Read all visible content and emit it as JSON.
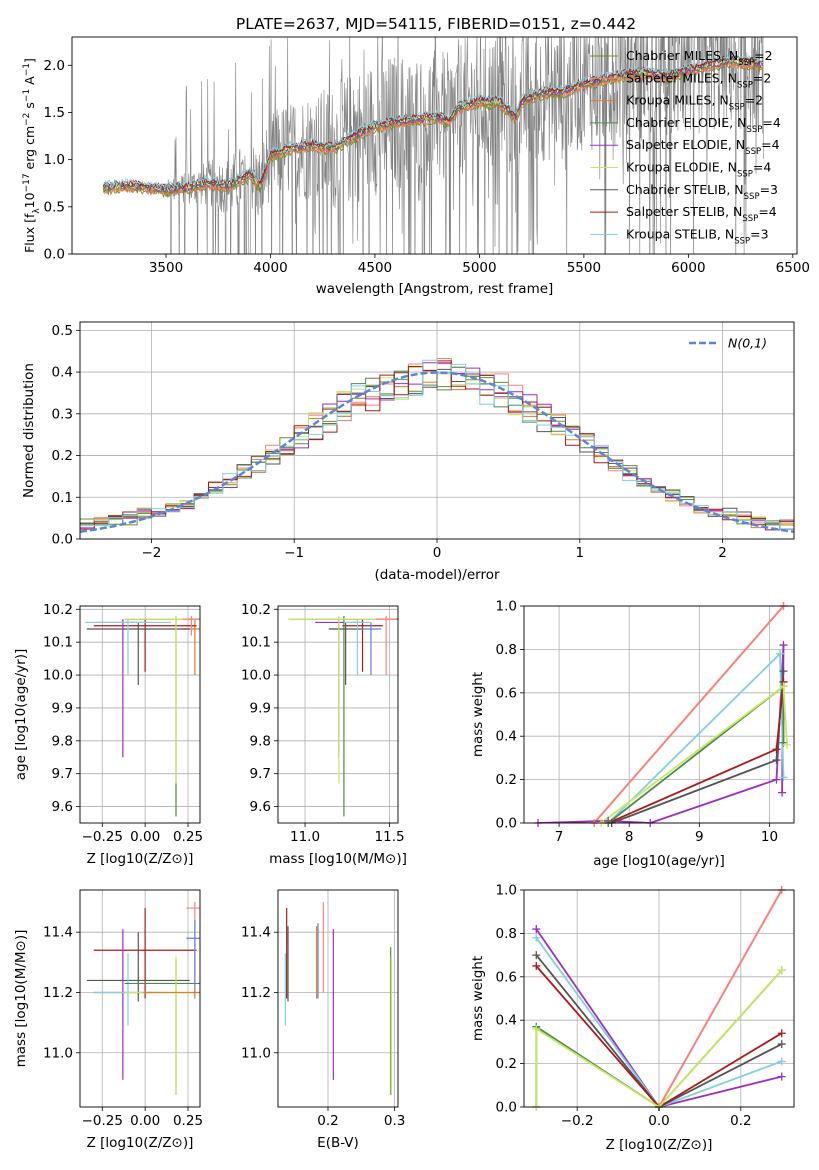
{
  "figure_title": "PLATE=2637, MJD=54115, FIBERID=0151, z=0.442",
  "chart_data": [
    {
      "id": "spectrum",
      "type": "line",
      "xlabel": "wavelength [Angstrom, rest frame]",
      "ylabel": "Flux [f_λ 10^-17 erg cm^-2 s^-1 A^-1]",
      "xlim": [
        3050,
        6520
      ],
      "ylim": [
        0,
        2.3
      ],
      "xticks": [
        3500,
        4000,
        4500,
        5000,
        5500,
        6000,
        6500
      ],
      "yticks": [
        0.0,
        0.5,
        1.0,
        1.5,
        2.0
      ],
      "legend_position": "top-right",
      "legend": [
        {
          "name": "Chabrier MILES, N_SSP=2",
          "base": "Chabrier MILES, N",
          "sub": "SSP",
          "tail": "=2",
          "color": "#6b8e23"
        },
        {
          "name": "Salpeter MILES, N_SSP=2",
          "base": "Salpeter MILES, N",
          "sub": "SSP",
          "tail": "=2",
          "color": "#ff7f7f"
        },
        {
          "name": "Kroupa MILES, N_SSP=2",
          "base": "Kroupa MILES, N",
          "sub": "SSP",
          "tail": "=2",
          "color": "#e07b30"
        },
        {
          "name": "Chabrier ELODIE, N_SSP=4",
          "base": "Chabrier ELODIE, N",
          "sub": "SSP",
          "tail": "=4",
          "color": "#4d8b4d"
        },
        {
          "name": "Salpeter ELODIE, N_SSP=4",
          "base": "Salpeter ELODIE, N",
          "sub": "SSP",
          "tail": "=4",
          "color": "#9b30c0"
        },
        {
          "name": "Kroupa ELODIE, N_SSP=4",
          "base": "Kroupa ELODIE, N",
          "sub": "SSP",
          "tail": "=4",
          "color": "#c8e860"
        },
        {
          "name": "Chabrier STELIB, N_SSP=3",
          "base": "Chabrier STELIB, N",
          "sub": "SSP",
          "tail": "=3",
          "color": "#555555"
        },
        {
          "name": "Salpeter STELIB, N_SSP=4",
          "base": "Salpeter STELIB, N",
          "sub": "SSP",
          "tail": "=4",
          "color": "#aa1a1a"
        },
        {
          "name": "Kroupa STELIB, N_SSP=3",
          "base": "Kroupa STELIB, N",
          "sub": "SSP",
          "tail": "=3",
          "color": "#80d0e0"
        }
      ],
      "data_color": "#808080",
      "continuum": [
        [
          3200,
          0.7
        ],
        [
          3300,
          0.72
        ],
        [
          3400,
          0.71
        ],
        [
          3500,
          0.68
        ],
        [
          3600,
          0.7
        ],
        [
          3700,
          0.75
        ],
        [
          3800,
          0.72
        ],
        [
          3900,
          0.85
        ],
        [
          3950,
          0.72
        ],
        [
          4000,
          1.05
        ],
        [
          4100,
          1.12
        ],
        [
          4200,
          1.15
        ],
        [
          4300,
          1.12
        ],
        [
          4400,
          1.25
        ],
        [
          4500,
          1.35
        ],
        [
          4600,
          1.4
        ],
        [
          4700,
          1.42
        ],
        [
          4800,
          1.45
        ],
        [
          4850,
          1.4
        ],
        [
          4900,
          1.55
        ],
        [
          5000,
          1.62
        ],
        [
          5100,
          1.6
        ],
        [
          5175,
          1.45
        ],
        [
          5200,
          1.62
        ],
        [
          5300,
          1.7
        ],
        [
          5400,
          1.72
        ],
        [
          5500,
          1.8
        ],
        [
          5600,
          1.85
        ],
        [
          5700,
          1.9
        ],
        [
          5800,
          1.92
        ],
        [
          5900,
          1.88
        ],
        [
          6000,
          1.95
        ],
        [
          6100,
          2.0
        ],
        [
          6200,
          2.05
        ],
        [
          6300,
          2.02
        ],
        [
          6360,
          2.0
        ]
      ],
      "noise_start": 3500
    },
    {
      "id": "residuals",
      "type": "histogram",
      "xlabel": "(data-model)/error",
      "ylabel": "Normed distribution",
      "xlim": [
        -2.5,
        2.5
      ],
      "ylim": [
        0,
        0.52
      ],
      "xticks": [
        -2,
        -1,
        0,
        1,
        2
      ],
      "yticks": [
        0.0,
        0.1,
        0.2,
        0.3,
        0.4,
        0.5
      ],
      "legend_label": "N(0,1)",
      "legend_color": "#5b85d6",
      "bin_width": 0.1,
      "bin_start": -2.5
    },
    {
      "id": "age_vs_Z",
      "type": "errorbar",
      "xlabel": "Z [log10(Z/Z⊙)]",
      "ylabel": "age  [log10(age/yr)]",
      "xlim": [
        -0.38,
        0.32
      ],
      "ylim": [
        9.55,
        10.21
      ],
      "xticks": [
        -0.25,
        0.0,
        0.25
      ],
      "yticks": [
        9.6,
        9.7,
        9.8,
        9.9,
        10.0,
        10.1,
        10.2
      ],
      "points": [
        {
          "x": 0.29,
          "y": 10.14,
          "xerr": 0.08,
          "ymin": 10.0,
          "ymax": 10.17,
          "color": "#e07b30"
        },
        {
          "x": 0.0,
          "y": 10.15,
          "xerr": 0.3,
          "ymin": 10.01,
          "ymax": 10.17,
          "color": "#aa1a1a"
        },
        {
          "x": -0.04,
          "y": 10.14,
          "xerr": 0.3,
          "ymin": 9.97,
          "ymax": 10.16,
          "color": "#555555"
        },
        {
          "x": -0.13,
          "y": 10.16,
          "xerr": 0.15,
          "ymin": 9.75,
          "ymax": 10.17,
          "color": "#9b30c0"
        },
        {
          "x": -0.1,
          "y": 10.16,
          "xerr": 0.25,
          "ymin": 10.0,
          "ymax": 10.17,
          "color": "#80d0e0"
        },
        {
          "x": 0.18,
          "y": 10.17,
          "xerr": 0.3,
          "ymin": 9.57,
          "ymax": 10.18,
          "color": "#4d8b4d"
        },
        {
          "x": 0.18,
          "y": 10.17,
          "xerr": 0.3,
          "ymin": 9.67,
          "ymax": 10.18,
          "color": "#c8e860"
        },
        {
          "x": 0.27,
          "y": 10.17,
          "xerr": 0.05,
          "ymin": 10.12,
          "ymax": 10.18,
          "color": "#ff7f7f"
        }
      ]
    },
    {
      "id": "age_vs_mass",
      "type": "errorbar",
      "xlabel": "mass [log10(M/M⊙)]",
      "ylabel": "",
      "xlim": [
        10.84,
        11.55
      ],
      "ylim": [
        9.55,
        10.21
      ],
      "xticks": [
        11.0,
        11.5
      ],
      "yticks": [
        9.6,
        9.7,
        9.8,
        9.9,
        10.0,
        10.1,
        10.2
      ],
      "points": [
        {
          "x": 11.34,
          "y": 10.15,
          "xerr": 0.12,
          "ymin": 10.01,
          "ymax": 10.17,
          "color": "#aa1a1a"
        },
        {
          "x": 11.24,
          "y": 10.14,
          "xerr": 0.1,
          "ymin": 9.97,
          "ymax": 10.16,
          "color": "#555555"
        },
        {
          "x": 11.2,
          "y": 10.16,
          "xerr": 0.14,
          "ymin": 9.75,
          "ymax": 10.17,
          "color": "#9b30c0"
        },
        {
          "x": 11.23,
          "y": 10.17,
          "xerr": 0.32,
          "ymin": 9.57,
          "ymax": 10.18,
          "color": "#4d8b4d"
        },
        {
          "x": 11.2,
          "y": 10.17,
          "xerr": 0.3,
          "ymin": 9.67,
          "ymax": 10.18,
          "color": "#c8e860"
        },
        {
          "x": 11.39,
          "y": 10.14,
          "xerr": 0.06,
          "ymin": 10.0,
          "ymax": 10.16,
          "color": "#5b85d6"
        },
        {
          "x": 11.48,
          "y": 10.17,
          "xerr": 0.06,
          "ymin": 10.0,
          "ymax": 10.18,
          "color": "#ff7f7f"
        },
        {
          "x": 11.31,
          "y": 10.16,
          "xerr": 0.08,
          "ymin": 10.0,
          "ymax": 10.17,
          "color": "#80d0e0"
        }
      ]
    },
    {
      "id": "mass_weight_vs_age",
      "type": "line",
      "xlabel": "age  [log10(age/yr)]",
      "ylabel": "mass weight",
      "xlim": [
        6.5,
        10.35
      ],
      "ylim": [
        0,
        1.0
      ],
      "xticks": [
        7,
        8,
        9,
        10
      ],
      "yticks": [
        0.0,
        0.2,
        0.4,
        0.6,
        0.8,
        1.0
      ],
      "series": [
        {
          "color": "#e07b30",
          "x": [
            7.5,
            10.2
          ],
          "y": [
            0.0,
            1.0
          ]
        },
        {
          "color": "#ff7f7f",
          "x": [
            7.5,
            10.2
          ],
          "y": [
            0.0,
            1.0
          ]
        },
        {
          "color": "#9b30c0",
          "x": [
            6.7,
            7.7,
            8.3,
            10.1,
            10.2,
            10.18
          ],
          "y": [
            0.0,
            0.01,
            0.0,
            0.2,
            0.82,
            0.14
          ]
        },
        {
          "color": "#80d0e0",
          "x": [
            7.7,
            10.15,
            10.2
          ],
          "y": [
            0.0,
            0.78,
            0.21
          ]
        },
        {
          "color": "#555555",
          "x": [
            7.75,
            10.1,
            10.2
          ],
          "y": [
            0.0,
            0.29,
            0.7
          ]
        },
        {
          "color": "#aa1a1a",
          "x": [
            7.7,
            10.1,
            10.2
          ],
          "y": [
            0.0,
            0.34,
            0.65
          ]
        },
        {
          "color": "#4d8b4d",
          "x": [
            7.7,
            10.2,
            10.2
          ],
          "y": [
            0.0,
            0.63,
            0.37
          ]
        },
        {
          "color": "#c8e860",
          "x": [
            7.6,
            10.2,
            10.25
          ],
          "y": [
            0.0,
            0.63,
            0.36
          ]
        }
      ]
    },
    {
      "id": "mass_vs_Z",
      "type": "errorbar",
      "xlabel": "Z [log10(Z/Z⊙)]",
      "ylabel": "mass [log10(M/M⊙)]",
      "xlim": [
        -0.38,
        0.32
      ],
      "ylim": [
        10.82,
        11.54
      ],
      "xticks": [
        -0.25,
        0.0,
        0.25
      ],
      "yticks": [
        11.0,
        11.2,
        11.4
      ],
      "points": [
        {
          "x": 0.0,
          "y": 11.34,
          "xerr": 0.3,
          "ymin": 11.18,
          "ymax": 11.48,
          "color": "#aa1a1a"
        },
        {
          "x": -0.04,
          "y": 11.24,
          "xerr": 0.3,
          "ymin": 11.17,
          "ymax": 11.4,
          "color": "#555555"
        },
        {
          "x": -0.13,
          "y": 11.2,
          "xerr": 0.17,
          "ymin": 10.91,
          "ymax": 11.41,
          "color": "#9b30c0"
        },
        {
          "x": -0.1,
          "y": 11.2,
          "xerr": 0.2,
          "ymin": 11.09,
          "ymax": 11.33,
          "color": "#80d0e0"
        },
        {
          "x": 0.18,
          "y": 11.23,
          "xerr": 0.3,
          "ymin": 10.86,
          "ymax": 11.31,
          "color": "#4d8b4d"
        },
        {
          "x": 0.18,
          "y": 11.2,
          "xerr": 0.3,
          "ymin": 10.86,
          "ymax": 11.32,
          "color": "#c8e860"
        },
        {
          "x": 0.29,
          "y": 11.48,
          "xerr": 0.05,
          "ymin": 11.22,
          "ymax": 11.5,
          "color": "#ff7f7f"
        },
        {
          "x": 0.29,
          "y": 11.38,
          "xerr": 0.05,
          "ymin": 11.2,
          "ymax": 11.44,
          "color": "#5b85d6"
        },
        {
          "x": 0.29,
          "y": 11.2,
          "xerr": 0.3,
          "ymin": 11.18,
          "ymax": 11.22,
          "color": "#e07b30"
        }
      ]
    },
    {
      "id": "mass_vs_ebv",
      "type": "errorbar",
      "xlabel": "E(B-V)",
      "ylabel": "",
      "xlim": [
        0.125,
        0.305
      ],
      "ylim": [
        10.82,
        11.54
      ],
      "xticks": [
        0.2,
        0.3
      ],
      "yticks": [
        11.0,
        11.2,
        11.4
      ],
      "points": [
        {
          "x": 0.138,
          "y": 11.34,
          "ymin": 11.18,
          "ymax": 11.48,
          "color": "#aa1a1a"
        },
        {
          "x": 0.14,
          "y": 11.24,
          "ymin": 11.17,
          "ymax": 11.42,
          "color": "#555555"
        },
        {
          "x": 0.136,
          "y": 11.2,
          "ymin": 11.09,
          "ymax": 11.33,
          "color": "#80d0e0"
        },
        {
          "x": 0.183,
          "y": 11.3,
          "ymin": 11.18,
          "ymax": 11.42,
          "color": "#e07b30"
        },
        {
          "x": 0.185,
          "y": 11.3,
          "ymin": 11.18,
          "ymax": 11.43,
          "color": "#5b85d6"
        },
        {
          "x": 0.193,
          "y": 11.4,
          "ymin": 11.2,
          "ymax": 11.5,
          "color": "#ff7f7f"
        },
        {
          "x": 0.208,
          "y": 11.2,
          "ymin": 10.91,
          "ymax": 11.41,
          "color": "#9b30c0"
        },
        {
          "x": 0.294,
          "y": 11.23,
          "ymin": 10.86,
          "ymax": 11.35,
          "color": "#4d8b4d"
        },
        {
          "x": 0.295,
          "y": 11.2,
          "ymin": 10.86,
          "ymax": 11.32,
          "color": "#c8e860"
        }
      ]
    },
    {
      "id": "mass_weight_vs_Z",
      "type": "line",
      "xlabel": "Z [log10(Z/Z⊙)]",
      "ylabel": "mass weight",
      "xlim": [
        -0.33,
        0.33
      ],
      "ylim": [
        0,
        1.0
      ],
      "xticks": [
        -0.2,
        0.0,
        0.2
      ],
      "yticks": [
        0.0,
        0.2,
        0.4,
        0.6,
        0.8,
        1.0
      ],
      "series": [
        {
          "color": "#e07b30",
          "x": [
            0.0,
            0.3
          ],
          "y": [
            0.0,
            1.0
          ]
        },
        {
          "color": "#ff7f7f",
          "x": [
            0.0,
            0.3
          ],
          "y": [
            0.0,
            1.0
          ]
        },
        {
          "color": "#9b30c0",
          "x": [
            -0.3,
            0.0,
            0.3
          ],
          "y": [
            0.82,
            0.0,
            0.14
          ]
        },
        {
          "color": "#80d0e0",
          "x": [
            -0.3,
            0.0,
            0.3
          ],
          "y": [
            0.78,
            0.0,
            0.21
          ]
        },
        {
          "color": "#555555",
          "x": [
            -0.3,
            0.0,
            0.3
          ],
          "y": [
            0.7,
            0.0,
            0.29
          ]
        },
        {
          "color": "#aa1a1a",
          "x": [
            -0.3,
            0.0,
            0.3
          ],
          "y": [
            0.65,
            0.0,
            0.34
          ]
        },
        {
          "color": "#4d8b4d",
          "x": [
            -0.3,
            -0.3,
            0.0,
            0.3
          ],
          "y": [
            0.0,
            0.37,
            0.0,
            0.63
          ]
        },
        {
          "color": "#c8e860",
          "x": [
            -0.3,
            -0.3,
            0.0,
            0.3
          ],
          "y": [
            0.0,
            0.36,
            0.0,
            0.63
          ]
        }
      ]
    }
  ]
}
